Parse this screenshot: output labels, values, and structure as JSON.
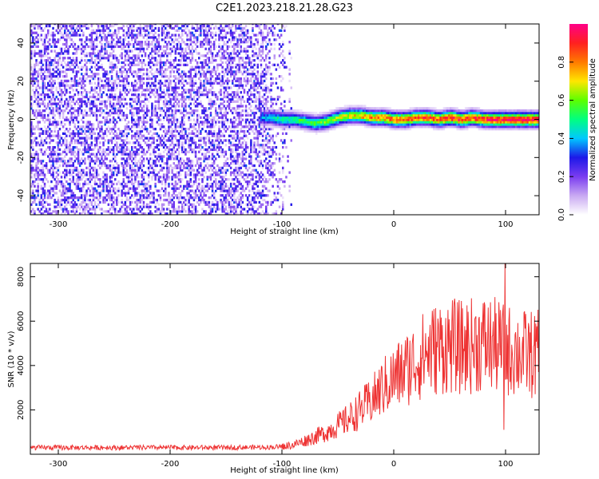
{
  "title": "C2E1.2023.218.21.28.G23",
  "colors": {
    "snr_line": "#ee3333",
    "axis": "#000000"
  },
  "chart_data": [
    {
      "type": "heatmap",
      "xlabel": "Height of straight line (km)",
      "ylabel": "Frequency (Hz)",
      "xlim": [
        -325,
        130
      ],
      "ylim": [
        -50,
        50
      ],
      "xticks": [
        -300,
        -200,
        -100,
        0,
        100
      ],
      "yticks": [
        -40,
        -20,
        0,
        20,
        40
      ],
      "colorbar": {
        "label": "Normalized spectral amplitude",
        "range": [
          0,
          1
        ],
        "ticks": [
          "0.0",
          "0.2",
          "0.4",
          "0.6",
          "0.8"
        ],
        "colormap": [
          "#ffffff",
          "#c9a9f2",
          "#7a3cf0",
          "#1d18e8",
          "#00c8ff",
          "#00ff80",
          "#5cff00",
          "#ffe600",
          "#ff7a00",
          "#ff2020",
          "#ff0088"
        ]
      },
      "signal_track": {
        "x": [
          -120,
          -110,
          -100,
          -90,
          -80,
          -70,
          -60,
          -50,
          -40,
          -30,
          -20,
          -10,
          0,
          10,
          20,
          30,
          40,
          50,
          60,
          70,
          80,
          90,
          100,
          110,
          120,
          130
        ],
        "freq": [
          1,
          1,
          0,
          0,
          -1,
          -2,
          -1,
          1,
          2,
          2,
          1,
          1,
          0,
          0,
          1,
          1,
          0,
          1,
          0,
          1,
          0,
          0,
          0,
          0,
          0,
          0
        ],
        "amplitude": [
          0.35,
          0.45,
          0.5,
          0.5,
          0.55,
          0.55,
          0.6,
          0.65,
          0.7,
          0.75,
          0.8,
          0.8,
          0.85,
          0.85,
          0.85,
          0.85,
          0.85,
          0.9,
          0.9,
          0.9,
          0.9,
          0.95,
          0.95,
          0.95,
          0.95,
          0.95
        ]
      },
      "noise_region": {
        "x": [
          -325,
          -100
        ],
        "amplitude": [
          0.0,
          0.3
        ]
      }
    },
    {
      "type": "line",
      "xlabel": "Height of straight line (km)",
      "ylabel": "SNR (10 * v/v)",
      "xlim": [
        -325,
        130
      ],
      "ylim": [
        0,
        8600
      ],
      "xticks": [
        -300,
        -200,
        -100,
        0,
        100
      ],
      "yticks": [
        2000,
        4000,
        6000,
        8000
      ],
      "series": [
        {
          "x": [
            -325,
            -300,
            -250,
            -200,
            -150,
            -110,
            -100,
            -90,
            -80,
            -70,
            -60,
            -50,
            -40,
            -30,
            -20,
            -10,
            0,
            10,
            20,
            30,
            40,
            50,
            60,
            70,
            80,
            90,
            100,
            110,
            120,
            130
          ],
          "values": [
            300,
            300,
            300,
            300,
            300,
            320,
            350,
            420,
            600,
            800,
            1000,
            1300,
            1600,
            2000,
            2400,
            3000,
            3400,
            3800,
            4200,
            4600,
            4800,
            4900,
            4800,
            4900,
            5000,
            4900,
            4700,
            4600,
            4500,
            4500
          ]
        }
      ]
    }
  ]
}
